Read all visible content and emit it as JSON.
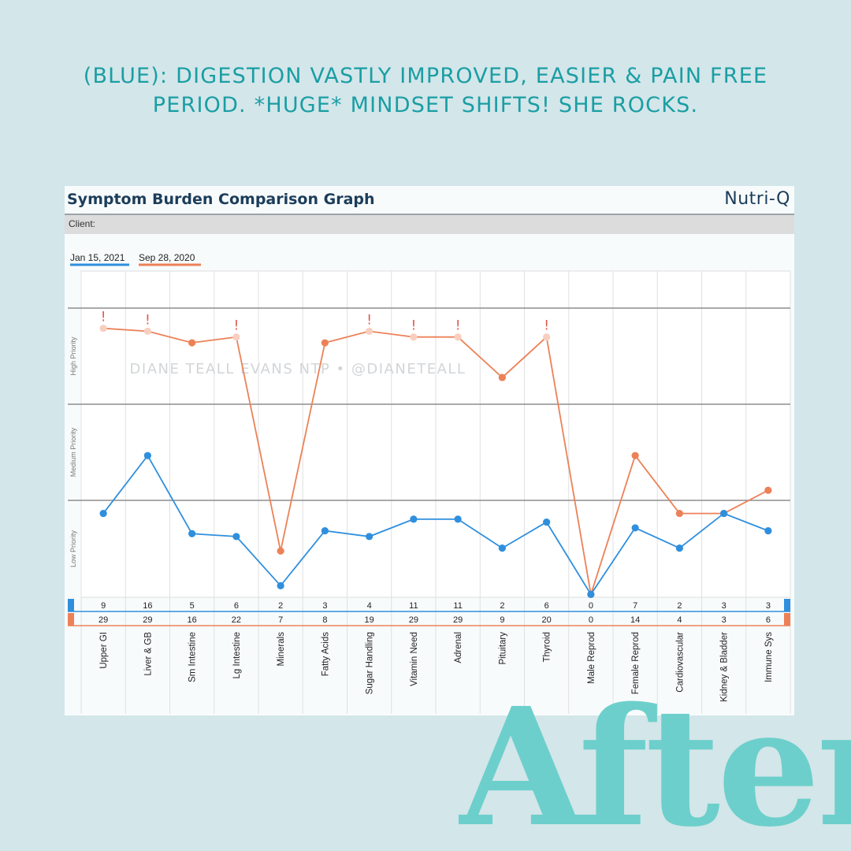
{
  "headline": {
    "line1": "(Blue): Digestion vastly improved, easier & pain free",
    "line2": "period. *Huge* mindset shifts! She rocks."
  },
  "after_word": "After",
  "card": {
    "title": "Symptom Burden Comparison Graph",
    "brand": "Nutri-Q",
    "client_label": "Client:"
  },
  "watermark": "DIANE TEALL EVANS NTP • @DIANETEALL",
  "colors": {
    "blue": "#2f8fdd",
    "orange": "#ec8158",
    "orange_faded": "#f8cfbf",
    "alert": "#e05a4e",
    "headline": "#1a9ea3",
    "after": "#6dcfcb",
    "background": "#d3e6ea"
  },
  "chart_data": {
    "type": "line",
    "categories": [
      "Upper GI",
      "Liver & GB",
      "Sm Intestine",
      "Lg Intestine",
      "Minerals",
      "Fatty Acids",
      "Sugar Handling",
      "Vitamin Need",
      "Adrenal",
      "Pituitary",
      "Thyroid",
      "Male Reprod",
      "Female Reprod",
      "Cardiovascular",
      "Kidney & Bladder",
      "Immune Sys"
    ],
    "priority_bands": [
      "Low Priority",
      "Medium Priority",
      "High Priority"
    ],
    "series": [
      {
        "name": "Jan 15, 2021",
        "color": "#2f8fdd",
        "values": [
          9,
          16,
          5,
          6,
          2,
          3,
          4,
          11,
          11,
          2,
          6,
          0,
          7,
          2,
          3,
          3
        ],
        "position_percent": [
          29,
          49,
          22,
          21,
          4,
          23,
          21,
          27,
          27,
          17,
          26,
          1,
          24,
          17,
          29,
          23
        ]
      },
      {
        "name": "Sep 28, 2020",
        "color": "#ec8158",
        "values": [
          29,
          29,
          16,
          22,
          7,
          8,
          19,
          29,
          29,
          9,
          20,
          0,
          14,
          4,
          3,
          6
        ],
        "position_percent": [
          93,
          92,
          88,
          90,
          16,
          88,
          92,
          90,
          90,
          76,
          90,
          1,
          49,
          29,
          29,
          37
        ],
        "exceeds_high": [
          true,
          true,
          false,
          true,
          false,
          false,
          true,
          true,
          true,
          false,
          true,
          false,
          false,
          false,
          false,
          false
        ]
      }
    ]
  }
}
